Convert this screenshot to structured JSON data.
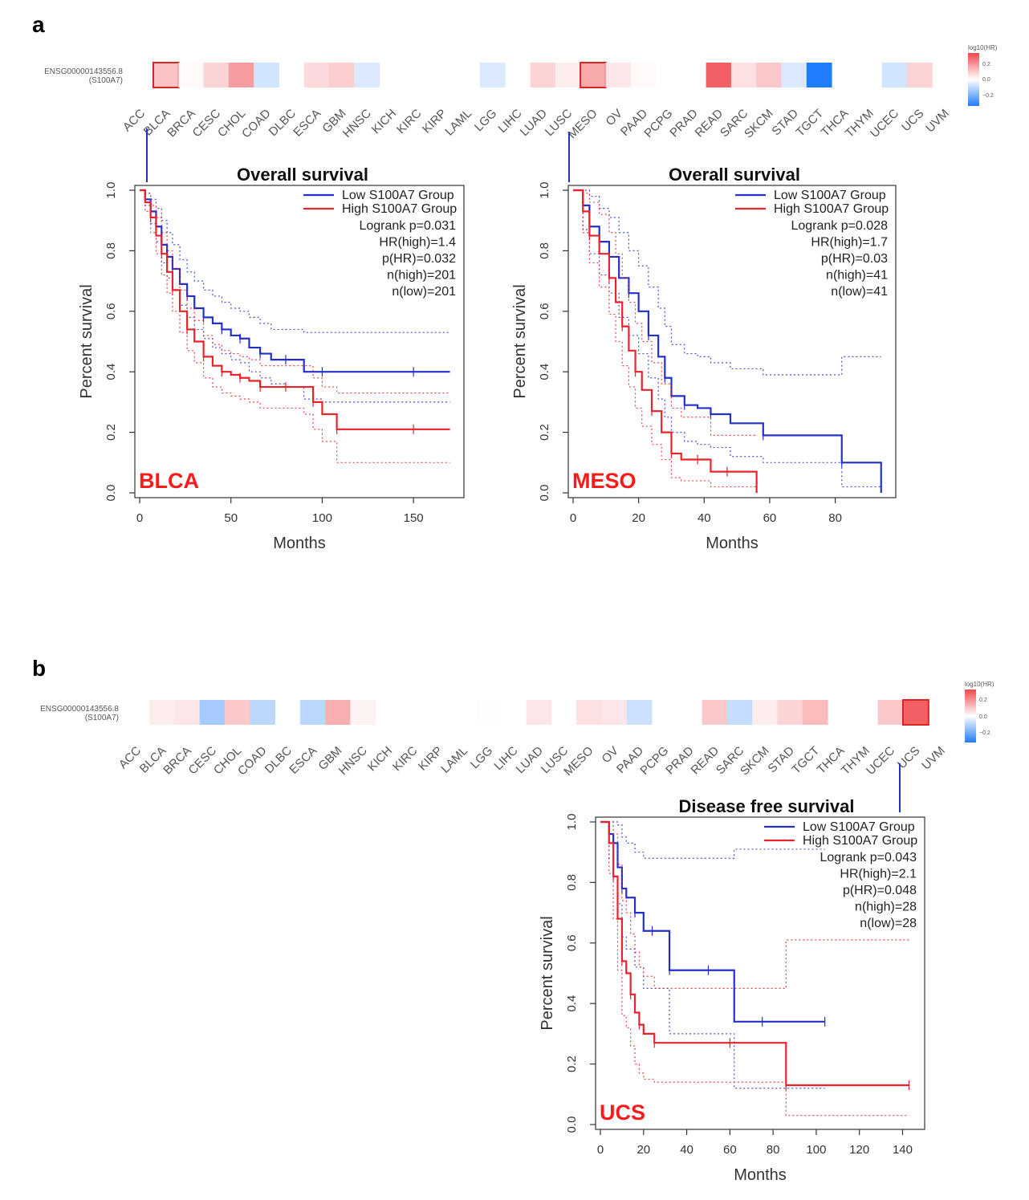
{
  "panels": {
    "a": "a",
    "b": "b"
  },
  "gene": {
    "id": "ENSG00000143556.8",
    "symbol": "(S100A7)"
  },
  "colorbar": {
    "title": "log10(HR)",
    "ticks": [
      "0.2",
      "0.0",
      "−0.2"
    ]
  },
  "colors": {
    "low": "#2431c8",
    "high": "#e8232a",
    "positive": "#f0474c",
    "negative": "#1f7dff",
    "label": "#ff1a1a"
  },
  "cancers": [
    "ACC",
    "BLCA",
    "BRCA",
    "CESC",
    "CHOL",
    "COAD",
    "DLBC",
    "ESCA",
    "GBM",
    "HNSC",
    "KICH",
    "KIRC",
    "KIRP",
    "LAML",
    "LGG",
    "LIHC",
    "LUAD",
    "LUSC",
    "MESO",
    "OV",
    "PAAD",
    "PCPG",
    "PRAD",
    "READ",
    "SARC",
    "SKCM",
    "STAD",
    "TGCT",
    "THCA",
    "THYM",
    "UCEC",
    "UCS",
    "UVM"
  ],
  "heatmaps": [
    {
      "panel": "a",
      "values": [
        null,
        0.1,
        0.01,
        0.07,
        0.16,
        -0.06,
        null,
        0.06,
        0.08,
        -0.05,
        null,
        null,
        null,
        null,
        -0.05,
        null,
        0.07,
        0.03,
        0.14,
        0.04,
        0.01,
        null,
        null,
        0.26,
        0.05,
        0.09,
        -0.05,
        -0.32,
        null,
        null,
        -0.06,
        0.07,
        null
      ],
      "highlighted": [
        "BLCA",
        "MESO"
      ]
    },
    {
      "panel": "b",
      "values": [
        null,
        0.03,
        0.04,
        -0.12,
        0.09,
        -0.09,
        null,
        -0.09,
        0.13,
        0.02,
        null,
        null,
        null,
        null,
        0.005,
        null,
        0.04,
        null,
        0.05,
        0.04,
        -0.07,
        null,
        null,
        0.09,
        -0.08,
        0.03,
        0.07,
        0.11,
        null,
        null,
        0.09,
        0.26,
        null
      ],
      "highlighted": [
        "UCS"
      ]
    }
  ],
  "chart_data": [
    {
      "type": "line",
      "title": "Overall survival",
      "cancer": "BLCA",
      "xlabel": "Months",
      "ylabel": "Percent survival",
      "xlim": [
        0,
        175
      ],
      "ylim": [
        0,
        1
      ],
      "xticks": [
        0,
        50,
        100,
        150
      ],
      "yticks": [
        0.0,
        0.2,
        0.4,
        0.6,
        0.8,
        1.0
      ],
      "legend": [
        "Low S100A7 Group",
        "High S100A7 Group"
      ],
      "stats": [
        "Logrank p=0.031",
        "HR(high)=1.4",
        "p(HR)=0.032",
        "n(high)=201",
        "n(low)=201"
      ],
      "series": [
        {
          "name": "Low S100A7 Group",
          "x": [
            0,
            3,
            6,
            9,
            12,
            15,
            18,
            22,
            26,
            30,
            35,
            40,
            45,
            50,
            55,
            60,
            66,
            72,
            80,
            90,
            100,
            120,
            150,
            170
          ],
          "y": [
            1.0,
            0.97,
            0.93,
            0.88,
            0.82,
            0.78,
            0.74,
            0.69,
            0.65,
            0.61,
            0.58,
            0.56,
            0.54,
            0.52,
            0.51,
            0.48,
            0.46,
            0.44,
            0.44,
            0.4,
            0.4,
            0.4,
            0.4,
            0.4
          ],
          "ci_upper": [
            1.0,
            0.99,
            0.97,
            0.94,
            0.9,
            0.86,
            0.82,
            0.77,
            0.73,
            0.7,
            0.67,
            0.65,
            0.63,
            0.61,
            0.6,
            0.58,
            0.56,
            0.54,
            0.54,
            0.53,
            0.53,
            0.53,
            0.53,
            0.53
          ],
          "ci_lower": [
            1.0,
            0.95,
            0.89,
            0.83,
            0.76,
            0.71,
            0.67,
            0.62,
            0.58,
            0.54,
            0.51,
            0.48,
            0.46,
            0.44,
            0.43,
            0.4,
            0.38,
            0.36,
            0.35,
            0.31,
            0.3,
            0.3,
            0.3,
            0.3
          ]
        },
        {
          "name": "High S100A7 Group",
          "x": [
            0,
            3,
            6,
            9,
            12,
            15,
            18,
            22,
            26,
            30,
            35,
            40,
            45,
            50,
            55,
            60,
            66,
            72,
            80,
            90,
            95,
            100,
            108,
            120,
            150,
            170
          ],
          "y": [
            1.0,
            0.96,
            0.91,
            0.85,
            0.79,
            0.73,
            0.67,
            0.6,
            0.54,
            0.5,
            0.45,
            0.42,
            0.4,
            0.39,
            0.38,
            0.37,
            0.35,
            0.35,
            0.35,
            0.35,
            0.3,
            0.26,
            0.21,
            0.21,
            0.21,
            0.21
          ],
          "ci_upper": [
            1.0,
            0.99,
            0.95,
            0.91,
            0.86,
            0.8,
            0.74,
            0.67,
            0.61,
            0.57,
            0.52,
            0.49,
            0.47,
            0.46,
            0.45,
            0.44,
            0.42,
            0.42,
            0.42,
            0.42,
            0.38,
            0.35,
            0.33,
            0.33,
            0.33,
            0.33
          ],
          "ci_lower": [
            1.0,
            0.93,
            0.86,
            0.79,
            0.72,
            0.66,
            0.6,
            0.53,
            0.47,
            0.43,
            0.38,
            0.35,
            0.33,
            0.32,
            0.31,
            0.3,
            0.28,
            0.28,
            0.28,
            0.26,
            0.21,
            0.17,
            0.1,
            0.1,
            0.1,
            0.1
          ]
        }
      ]
    },
    {
      "type": "line",
      "title": "Overall survival",
      "cancer": "MESO",
      "xlabel": "Months",
      "ylabel": "Percent survival",
      "xlim": [
        0,
        97
      ],
      "ylim": [
        0,
        1
      ],
      "xticks": [
        0,
        20,
        40,
        60,
        80
      ],
      "yticks": [
        0.0,
        0.2,
        0.4,
        0.6,
        0.8,
        1.0
      ],
      "legend": [
        "Low S100A7 Group",
        "High S100A7 Group"
      ],
      "stats": [
        "Logrank p=0.028",
        "HR(high)=1.7",
        "p(HR)=0.03",
        "n(high)=41",
        "n(low)=41"
      ],
      "series": [
        {
          "name": "Low S100A7 Group",
          "x": [
            0,
            3,
            5,
            8,
            11,
            14,
            17,
            20,
            23,
            26,
            28,
            30,
            34,
            38,
            42,
            48,
            58,
            70,
            82,
            88,
            94
          ],
          "y": [
            1.0,
            0.95,
            0.88,
            0.83,
            0.78,
            0.71,
            0.66,
            0.6,
            0.52,
            0.45,
            0.38,
            0.32,
            0.29,
            0.28,
            0.26,
            0.23,
            0.19,
            0.19,
            0.1,
            0.1,
            0.0
          ],
          "ci_upper": [
            1.0,
            1.0,
            0.98,
            0.94,
            0.91,
            0.86,
            0.8,
            0.75,
            0.68,
            0.61,
            0.55,
            0.49,
            0.46,
            0.45,
            0.43,
            0.41,
            0.39,
            0.39,
            0.45,
            0.45,
            0.45
          ],
          "ci_lower": [
            1.0,
            0.87,
            0.79,
            0.72,
            0.66,
            0.58,
            0.52,
            0.46,
            0.38,
            0.31,
            0.25,
            0.2,
            0.17,
            0.16,
            0.15,
            0.12,
            0.1,
            0.1,
            0.02,
            0.02,
            0.0
          ]
        },
        {
          "name": "High S100A7 Group",
          "x": [
            0,
            3,
            5,
            8,
            11,
            13,
            15,
            17,
            19,
            21,
            24,
            27,
            30,
            33,
            38,
            42,
            47,
            52,
            56
          ],
          "y": [
            1.0,
            0.93,
            0.85,
            0.79,
            0.71,
            0.63,
            0.55,
            0.47,
            0.4,
            0.34,
            0.27,
            0.2,
            0.13,
            0.11,
            0.11,
            0.07,
            0.07,
            0.07,
            0.0
          ],
          "ci_upper": [
            1.0,
            0.99,
            0.96,
            0.92,
            0.86,
            0.79,
            0.71,
            0.63,
            0.56,
            0.5,
            0.43,
            0.36,
            0.28,
            0.25,
            0.25,
            0.19,
            0.19,
            0.19,
            0.19
          ],
          "ci_lower": [
            1.0,
            0.86,
            0.76,
            0.68,
            0.59,
            0.5,
            0.42,
            0.35,
            0.28,
            0.22,
            0.16,
            0.11,
            0.05,
            0.04,
            0.04,
            0.02,
            0.02,
            0.02,
            0.0
          ]
        }
      ]
    },
    {
      "type": "line",
      "title": "Disease free survival",
      "cancer": "UCS",
      "xlabel": "Months",
      "ylabel": "Percent survival",
      "xlim": [
        0,
        148
      ],
      "ylim": [
        0,
        1
      ],
      "xticks": [
        0,
        20,
        40,
        60,
        80,
        100,
        120,
        140
      ],
      "yticks": [
        0.0,
        0.2,
        0.4,
        0.6,
        0.8,
        1.0
      ],
      "legend": [
        "Low S100A7 Group",
        "High S100A7 Group"
      ],
      "stats": [
        "Logrank p=0.043",
        "HR(high)=2.1",
        "p(HR)=0.048",
        "n(high)=28",
        "n(low)=28"
      ],
      "series": [
        {
          "name": "Low S100A7 Group",
          "x": [
            0,
            4,
            6,
            8,
            10,
            12,
            16,
            20,
            24,
            28,
            32,
            40,
            50,
            62,
            75,
            90,
            104
          ],
          "y": [
            1.0,
            0.96,
            0.93,
            0.85,
            0.78,
            0.75,
            0.7,
            0.64,
            0.64,
            0.64,
            0.51,
            0.51,
            0.51,
            0.34,
            0.34,
            0.34,
            0.34
          ],
          "ci_upper": [
            1.0,
            1.0,
            1.0,
            0.99,
            0.95,
            0.93,
            0.9,
            0.88,
            0.88,
            0.88,
            0.88,
            0.88,
            0.88,
            0.91,
            0.91,
            0.91,
            0.91
          ],
          "ci_lower": [
            1.0,
            0.88,
            0.82,
            0.73,
            0.62,
            0.58,
            0.52,
            0.45,
            0.45,
            0.45,
            0.3,
            0.3,
            0.3,
            0.12,
            0.12,
            0.12,
            0.12
          ]
        },
        {
          "name": "High S100A7 Group",
          "x": [
            0,
            4,
            6,
            8,
            10,
            12,
            14,
            16,
            18,
            20,
            25,
            40,
            60,
            80,
            86,
            110,
            143
          ],
          "y": [
            1.0,
            0.93,
            0.82,
            0.68,
            0.54,
            0.5,
            0.43,
            0.37,
            0.33,
            0.3,
            0.27,
            0.27,
            0.27,
            0.27,
            0.13,
            0.13,
            0.13
          ],
          "ci_upper": [
            1.0,
            1.0,
            0.96,
            0.86,
            0.74,
            0.7,
            0.63,
            0.57,
            0.52,
            0.49,
            0.45,
            0.45,
            0.45,
            0.45,
            0.61,
            0.61,
            0.61
          ],
          "ci_lower": [
            1.0,
            0.83,
            0.68,
            0.51,
            0.36,
            0.32,
            0.26,
            0.2,
            0.17,
            0.15,
            0.14,
            0.14,
            0.14,
            0.14,
            0.03,
            0.03,
            0.03
          ]
        }
      ]
    }
  ]
}
